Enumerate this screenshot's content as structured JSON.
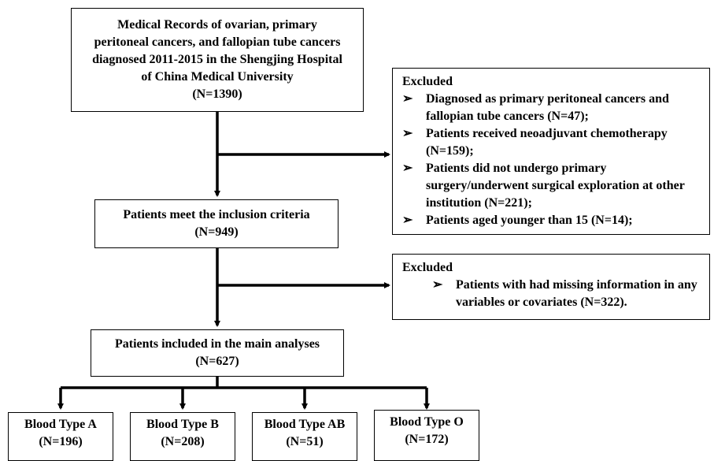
{
  "top_box": {
    "lines": [
      "Medical Records of ovarian, primary",
      "peritoneal cancers, and fallopian tube cancers",
      "diagnosed 2011-2015 in the Shengjing Hospital",
      "of China Medical University",
      "(N=1390)"
    ]
  },
  "exclusion_1": {
    "title": "Excluded",
    "bullet": "➢",
    "items": [
      "Diagnosed as primary peritoneal cancers and fallopian tube cancers (N=47);",
      "Patients received neoadjuvant chemotherapy (N=159);",
      "Patients did not undergo primary surgery/underwent surgical exploration at other institution (N=221);",
      "Patients aged younger than 15 (N=14);"
    ]
  },
  "inclusion_box": {
    "lines": [
      "Patients meet the inclusion criteria",
      "(N=949)"
    ]
  },
  "exclusion_2": {
    "title": "Excluded",
    "bullet": "➢",
    "items": [
      "Patients with had missing information in any variables or covariates (N=322)."
    ]
  },
  "analysis_box": {
    "lines": [
      "Patients included in the main analyses",
      "(N=627)"
    ]
  },
  "blood_types": [
    {
      "label": "Blood Type A",
      "count": "(N=196)"
    },
    {
      "label": "Blood Type B",
      "count": "(N=208)"
    },
    {
      "label": "Blood Type AB",
      "count": "(N=51)"
    },
    {
      "label": "Blood Type O",
      "count": "(N=172)"
    }
  ]
}
